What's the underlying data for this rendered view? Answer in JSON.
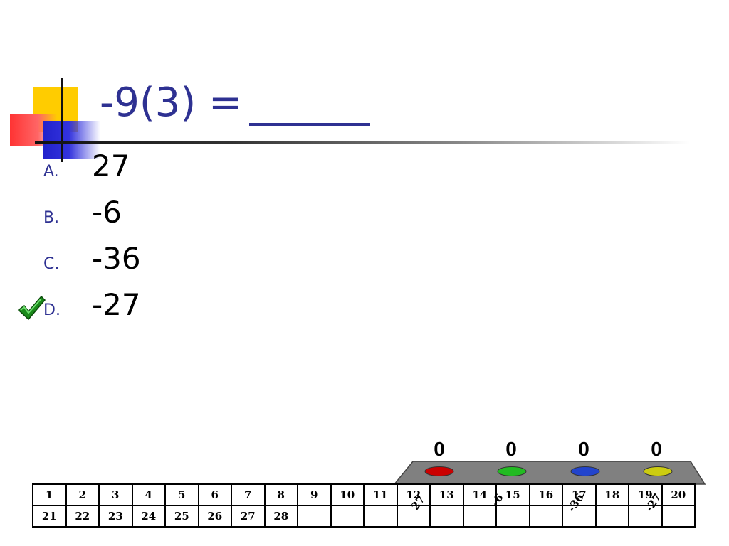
{
  "question": {
    "text": "-9(3) ="
  },
  "answers": [
    {
      "letter": "A.",
      "value": "27"
    },
    {
      "letter": "B.",
      "value": "-6"
    },
    {
      "letter": "C.",
      "value": "-36"
    },
    {
      "letter": "D.",
      "value": "-27",
      "correct": true
    }
  ],
  "response_counts": [
    "0",
    "0",
    "0",
    "0"
  ],
  "button_colors": [
    "#cc0000",
    "#22bb22",
    "#2244cc",
    "#cccc11"
  ],
  "tray_color": "#808080",
  "roster_row1": [
    "1",
    "2",
    "3",
    "4",
    "5",
    "6",
    "7",
    "8",
    "9",
    "10",
    "11",
    "12",
    "13",
    "14",
    "15",
    "16",
    "17",
    "18",
    "19",
    "20"
  ],
  "roster_row2": [
    "21",
    "22",
    "23",
    "24",
    "25",
    "26",
    "27",
    "28",
    "",
    "",
    "",
    "",
    "",
    "",
    "",
    "",
    "",
    "",
    "",
    ""
  ],
  "overlay_labels": [
    "27",
    "-6",
    "-36",
    "-27"
  ],
  "accent_color": "#2e3192"
}
